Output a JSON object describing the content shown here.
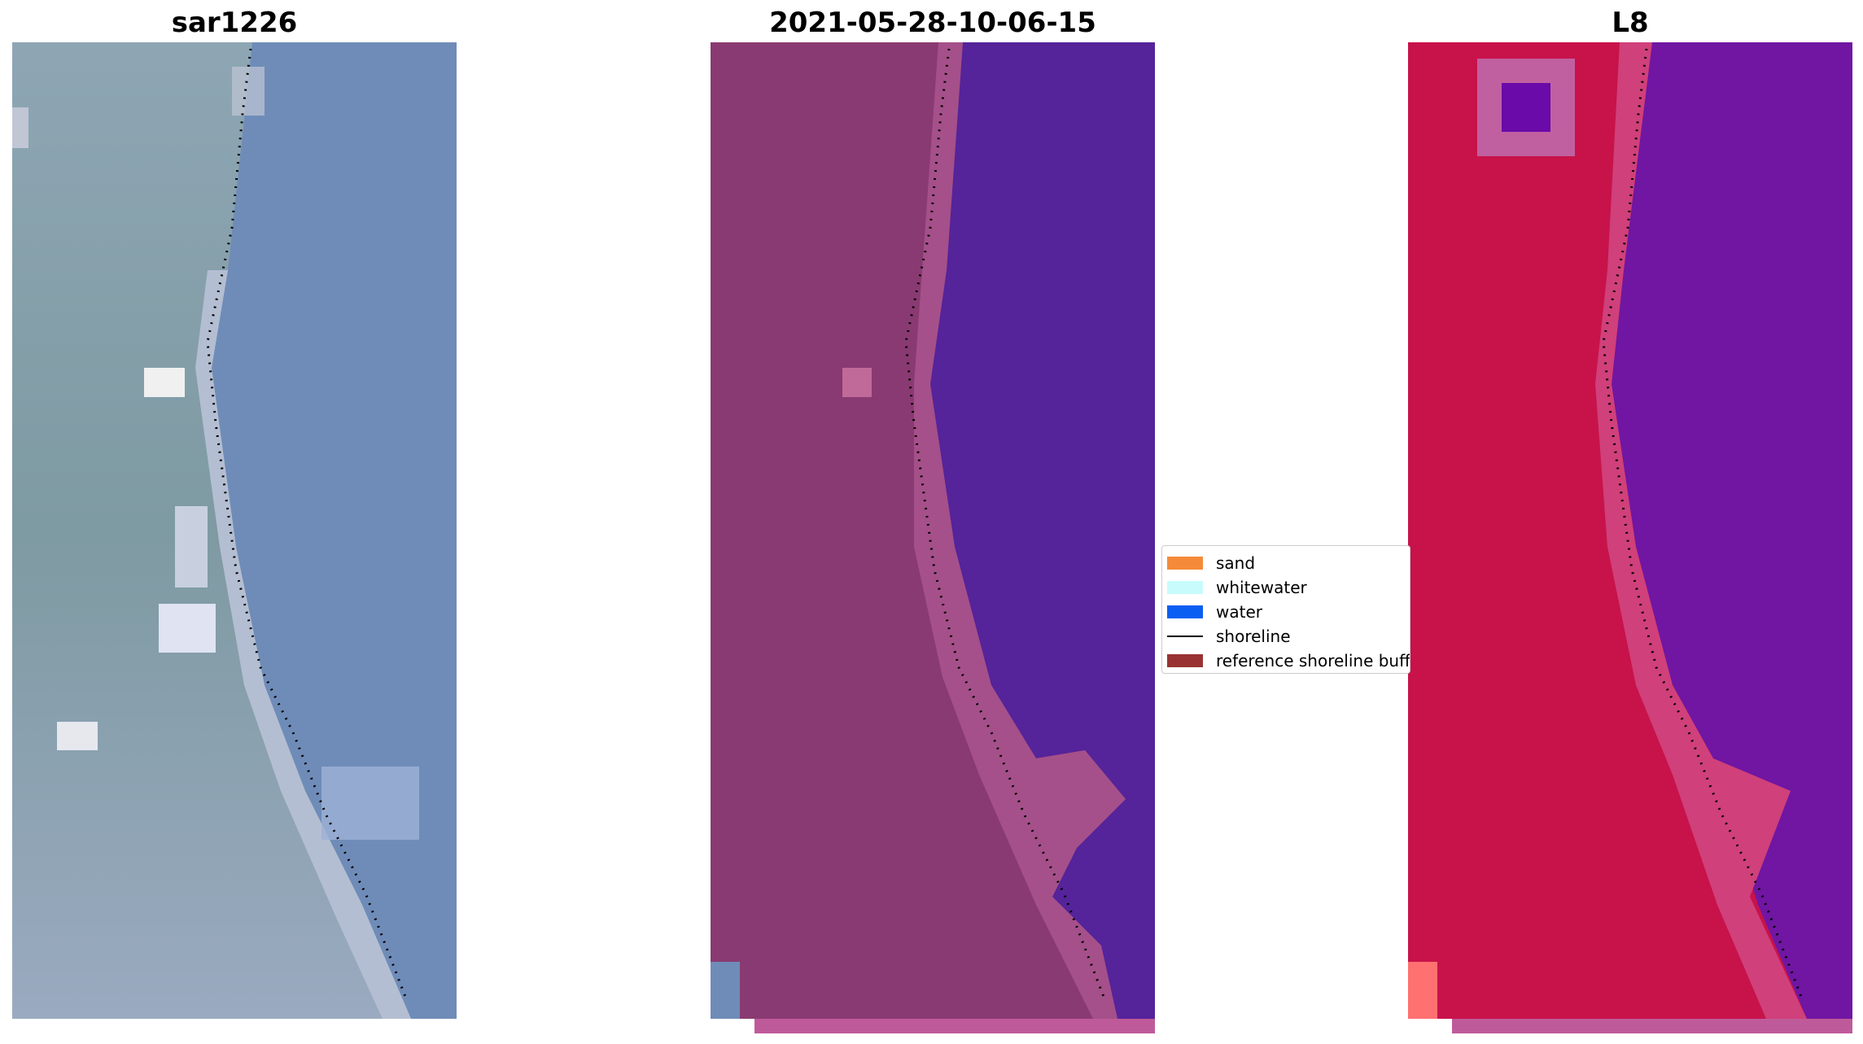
{
  "titles": {
    "left": "sar1226",
    "middle": "2021-05-28-10-06-15",
    "right": "L8"
  },
  "legend": {
    "items": [
      {
        "label": "sand",
        "color": "#f58a3a",
        "kind": "patch"
      },
      {
        "label": "whitewater",
        "color": "#c8fcfc",
        "kind": "patch"
      },
      {
        "label": "water",
        "color": "#0a5ef2",
        "kind": "patch"
      },
      {
        "label": "shoreline",
        "color": "#000000",
        "kind": "line"
      },
      {
        "label": "reference shoreline buffer",
        "color": "#993333",
        "kind": "patch"
      }
    ]
  },
  "colors": {
    "rgb_water": "#6f8cb8",
    "rgb_land": "#8ea3b5",
    "class_water": "#55239a",
    "class_land": "#8a3a72",
    "ndwi_water": "#7016a2",
    "ndwi_land": "#c8124a",
    "strip": "#bf5a9a",
    "shoreline": "#000000"
  }
}
